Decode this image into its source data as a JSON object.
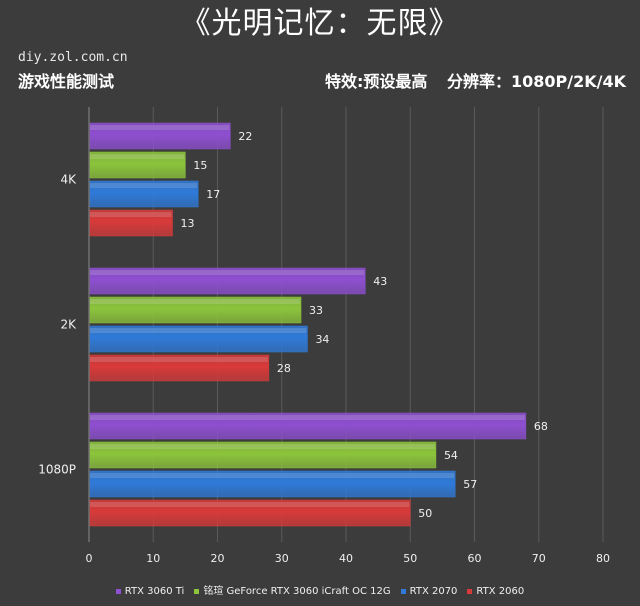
{
  "header": {
    "title": "《光明记忆：无限》",
    "site": "diy.zol.com.cn",
    "subtitle": "游戏性能测试",
    "effects": "特效:预设最高",
    "resolution": "分辨率：1080P/2K/4K"
  },
  "chart_data": {
    "type": "bar",
    "orientation": "horizontal",
    "categories": [
      "4K",
      "2K",
      "1080P"
    ],
    "series": [
      {
        "name": "RTX 3060 Ti",
        "values": [
          22,
          43,
          68
        ],
        "color": "#8e4fd0"
      },
      {
        "name": "铭瑄 GeForce RTX 3060 iCraft OC 12G",
        "values": [
          15,
          33,
          54
        ],
        "color": "#8cc43c"
      },
      {
        "name": "RTX 2070",
        "values": [
          17,
          34,
          57
        ],
        "color": "#2f7ad8"
      },
      {
        "name": "RTX 2060",
        "values": [
          13,
          28,
          50
        ],
        "color": "#d83a3a"
      }
    ],
    "xlim": [
      0,
      80
    ],
    "xticks": [
      0,
      10,
      20,
      30,
      40,
      50,
      60,
      70,
      80
    ],
    "grid": true,
    "legend_position": "bottom"
  }
}
